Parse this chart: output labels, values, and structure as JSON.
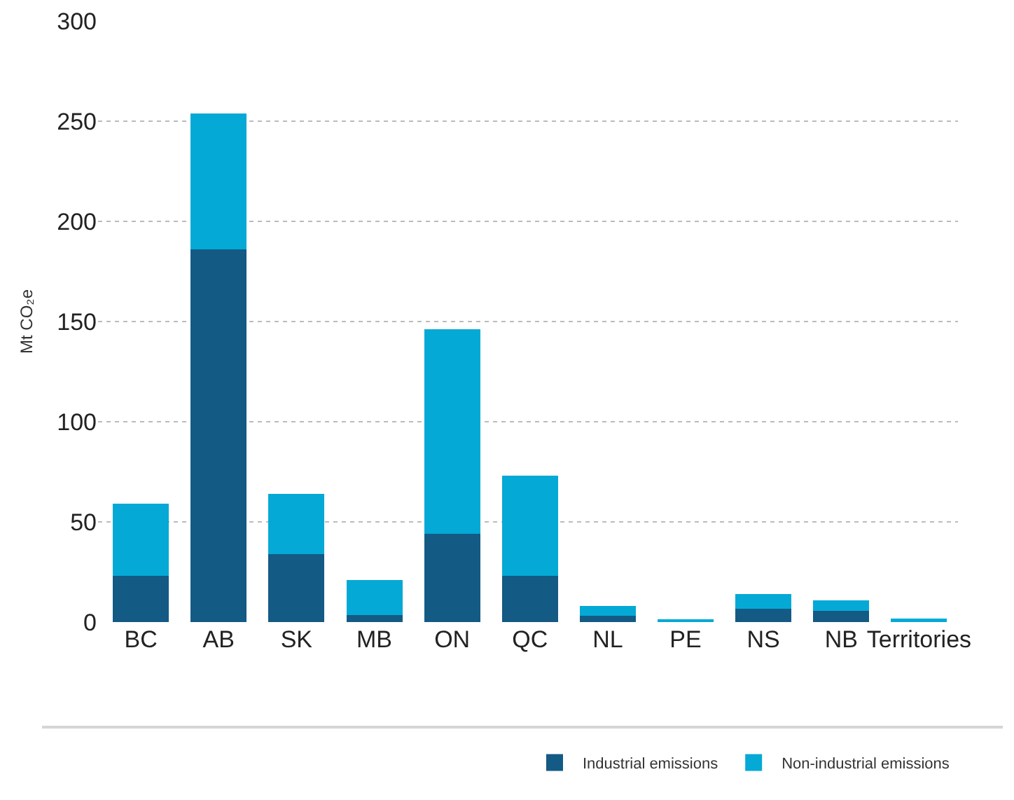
{
  "chart_data": {
    "type": "bar",
    "stacked": true,
    "ylabel": "Mt CO₂e",
    "categories": [
      "BC",
      "AB",
      "SK",
      "MB",
      "ON",
      "QC",
      "NL",
      "PE",
      "NS",
      "NB",
      "Territories"
    ],
    "series": [
      {
        "name": "Industrial emissions",
        "color": "#135a85",
        "values": [
          23,
          186,
          34,
          3.5,
          44,
          23,
          3,
          null,
          6.5,
          5.5,
          null
        ]
      },
      {
        "name": "Non-industrial emissions",
        "color": "#05a9d5",
        "values": [
          36,
          68,
          30,
          17.5,
          102,
          50,
          5,
          1.4,
          7.5,
          5.5,
          1.9
        ]
      }
    ],
    "ylim": [
      0,
      300
    ],
    "yticks": [
      0,
      50,
      100,
      150,
      200,
      250,
      300
    ],
    "grid": "y",
    "legend": "bottom right"
  }
}
